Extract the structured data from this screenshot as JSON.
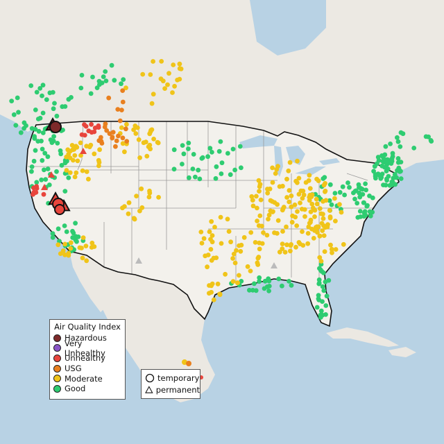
{
  "legend": {
    "title": "Air Quality Index",
    "categories": [
      {
        "label": "Hazardous",
        "color": "#7e2a2a"
      },
      {
        "label": "Very Unhealthy",
        "color": "#8b55c6"
      },
      {
        "label": "Unhealthy",
        "color": "#e8453c"
      },
      {
        "label": "USG",
        "color": "#e9801f"
      },
      {
        "label": "Moderate",
        "color": "#f0c419"
      },
      {
        "label": "Good",
        "color": "#2ecc71"
      }
    ]
  },
  "shape_legend": {
    "temporary": "temporary",
    "permanent": "permanent"
  },
  "colors": {
    "water": "#b8d2e4",
    "land": "#f1efea",
    "outside_land": "#e9e7e2",
    "border": "#111111",
    "state_lines": "#9a9a9a",
    "no_data": "#bbbbbb"
  }
}
